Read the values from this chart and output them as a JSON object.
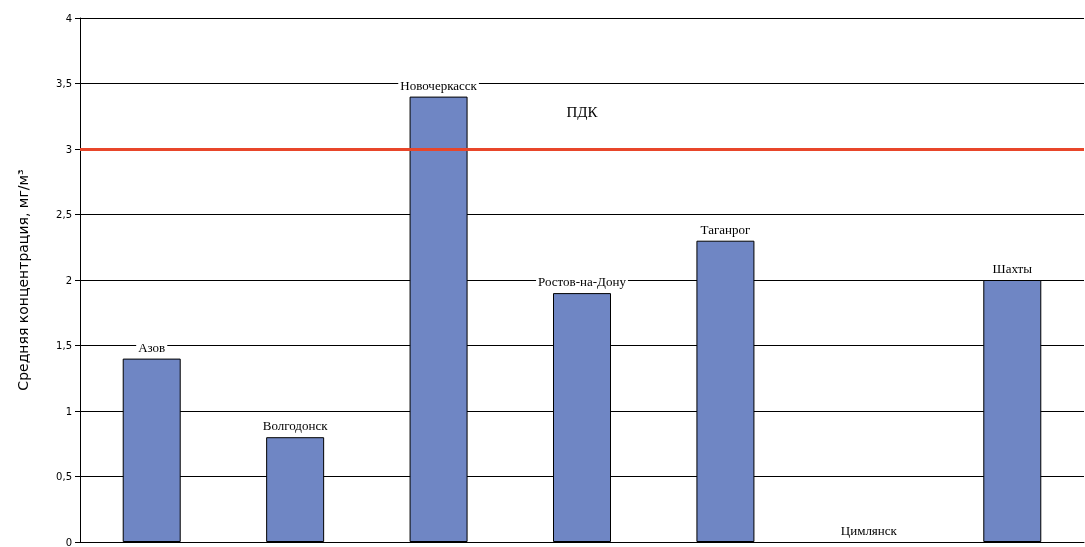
{
  "chart_data": {
    "type": "bar",
    "ylabel": "Средняя концентрация, мг/м³",
    "categories": [
      "Азов",
      "Волгодонск",
      "Новочеркасск",
      "Ростов-на-Дону",
      "Таганрог",
      "Цимлянск",
      "Шахты"
    ],
    "values": [
      1.4,
      0.8,
      3.4,
      1.9,
      2.3,
      0,
      2.0
    ],
    "color": "#6f86c4",
    "ylim": [
      0,
      4
    ],
    "yticks": [
      0,
      {
        "value": 0.5,
        "label": "0,5"
      },
      1,
      {
        "value": 1.5,
        "label": "1,5"
      },
      2,
      {
        "value": 2.5,
        "label": "2,5"
      },
      3,
      {
        "value": 3.5,
        "label": "3,5"
      },
      4
    ],
    "ref_lines": [
      {
        "axis": "y",
        "value": 3,
        "label": "ПДК",
        "color": "#e8462a"
      }
    ],
    "grid": "y",
    "tick_labels": "y"
  }
}
